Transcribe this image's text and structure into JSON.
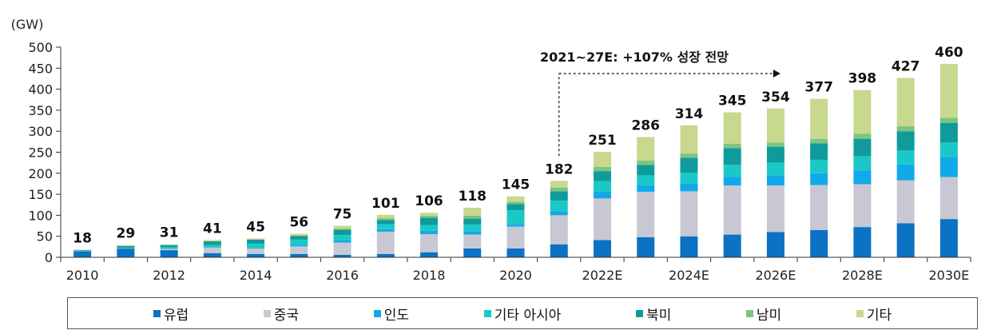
{
  "chart_data": {
    "type": "bar",
    "stacked": true,
    "unit_label": "(GW)",
    "ylim": [
      0,
      500
    ],
    "yticks": [
      0,
      50,
      100,
      150,
      200,
      250,
      300,
      350,
      400,
      450,
      500
    ],
    "categories": [
      "2010",
      "2011",
      "2012",
      "2013",
      "2014",
      "2015",
      "2016",
      "2017",
      "2018",
      "2019",
      "2020",
      "2021",
      "2022E",
      "2023E",
      "2024E",
      "2025E",
      "2026E",
      "2027E",
      "2028E",
      "2029E",
      "2030E"
    ],
    "xtick_labels": [
      "2010",
      "",
      "2012",
      "",
      "2014",
      "",
      "2016",
      "",
      "2018",
      "",
      "2020",
      "",
      "2022E",
      "",
      "2024E",
      "",
      "2026E",
      "",
      "2028E",
      "",
      "2030E"
    ],
    "totals": [
      18,
      29,
      31,
      41,
      45,
      56,
      75,
      101,
      106,
      118,
      145,
      182,
      251,
      286,
      314,
      345,
      354,
      377,
      398,
      427,
      460
    ],
    "series": [
      {
        "name": "유럽",
        "color": "#0b72c4",
        "values": [
          14,
          20,
          17,
          10,
          8,
          8,
          6,
          8,
          12,
          21,
          21,
          31,
          41,
          48,
          50,
          54,
          60,
          65,
          72,
          81,
          91
        ]
      },
      {
        "name": "중국",
        "color": "#c8c8d4",
        "values": [
          0,
          0,
          3,
          13,
          13,
          18,
          29,
          53,
          43,
          33,
          52,
          69,
          99,
          108,
          107,
          117,
          111,
          107,
          102,
          102,
          100
        ]
      },
      {
        "name": "인도",
        "color": "#12a9e8",
        "values": [
          0,
          0,
          0,
          1,
          2,
          4,
          5,
          6,
          8,
          8,
          4,
          10,
          16,
          15,
          18,
          20,
          23,
          28,
          33,
          38,
          48
        ]
      },
      {
        "name": "기타 아시아",
        "color": "#1bc8c8",
        "values": [
          2,
          3,
          4,
          5,
          9,
          12,
          13,
          12,
          14,
          16,
          35,
          25,
          25,
          24,
          26,
          29,
          31,
          32,
          33,
          33,
          34
        ]
      },
      {
        "name": "북미",
        "color": "#0f9b9b",
        "values": [
          1,
          4,
          5,
          9,
          10,
          9,
          13,
          10,
          17,
          14,
          15,
          22,
          24,
          25,
          36,
          40,
          38,
          39,
          42,
          46,
          47
        ]
      },
      {
        "name": "남미",
        "color": "#7cc47f",
        "values": [
          0,
          0,
          0,
          0,
          0,
          1,
          2,
          4,
          5,
          7,
          5,
          9,
          10,
          10,
          10,
          10,
          10,
          11,
          12,
          12,
          12
        ]
      },
      {
        "name": "기타",
        "color": "#c8d88f",
        "values": [
          1,
          2,
          2,
          3,
          3,
          4,
          7,
          8,
          7,
          19,
          13,
          16,
          36,
          56,
          67,
          75,
          81,
          95,
          104,
          115,
          128
        ]
      }
    ],
    "annotation": "2021~27E: +107% 성장 전망",
    "legend_position": "bottom"
  }
}
